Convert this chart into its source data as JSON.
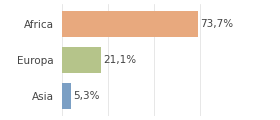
{
  "categories": [
    "Africa",
    "Europa",
    "Asia"
  ],
  "values": [
    73.7,
    21.1,
    5.3
  ],
  "labels": [
    "73,7%",
    "21,1%",
    "5,3%"
  ],
  "bar_colors": [
    "#e8a97e",
    "#b5c48a",
    "#7b9fc4"
  ],
  "background_color": "#ffffff",
  "xlim": [
    0,
    100
  ],
  "label_fontsize": 7.5,
  "tick_fontsize": 7.5,
  "bar_height": 0.72
}
